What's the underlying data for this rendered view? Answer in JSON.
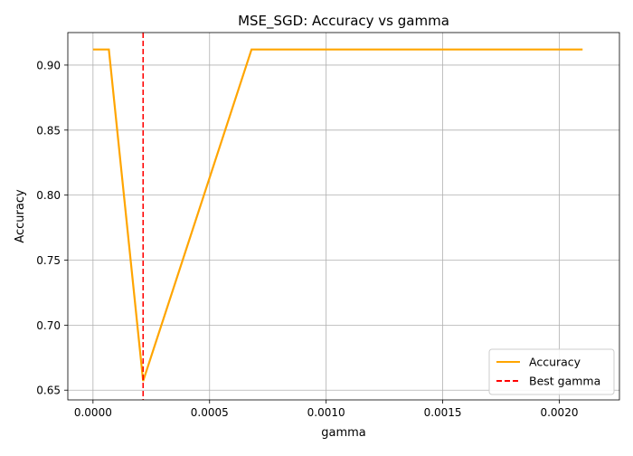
{
  "chart_data": {
    "type": "line",
    "title": "MSE_SGD: Accuracy vs gamma",
    "xlabel": "gamma",
    "ylabel": "Accuracy",
    "xlim": [
      -0.000108,
      0.002258
    ],
    "ylim": [
      0.6425,
      0.925
    ],
    "x_ticks": [
      0.0,
      0.0005,
      0.001,
      0.0015,
      0.002
    ],
    "x_tick_labels": [
      "0.0000",
      "0.0005",
      "0.0010",
      "0.0015",
      "0.0020"
    ],
    "y_ticks": [
      0.65,
      0.7,
      0.75,
      0.8,
      0.85,
      0.9
    ],
    "y_tick_labels": [
      "0.65",
      "0.70",
      "0.75",
      "0.80",
      "0.85",
      "0.90"
    ],
    "grid": true,
    "legend_position": "bottom-right",
    "series": [
      {
        "name": "Accuracy",
        "color": "#ffa500",
        "style": "solid",
        "x": [
          0.0,
          6.8e-05,
          0.000215,
          0.00068,
          0.001,
          0.0015,
          0.0021
        ],
        "y": [
          0.912,
          0.912,
          0.657,
          0.912,
          0.912,
          0.912,
          0.912
        ]
      }
    ],
    "vlines": [
      {
        "name": "Best gamma",
        "x": 0.000215,
        "color": "#ff0000",
        "style": "dashed"
      }
    ]
  }
}
